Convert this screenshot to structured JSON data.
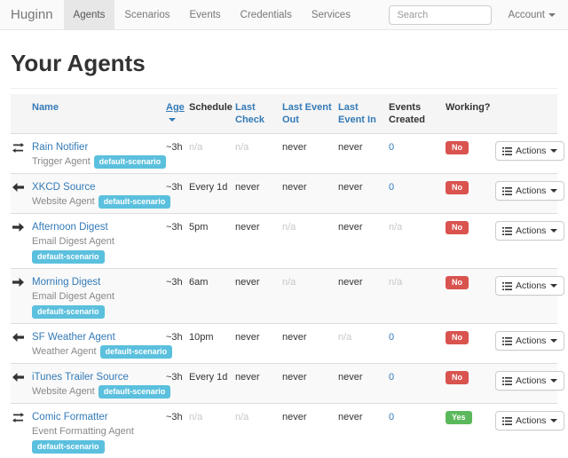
{
  "navbar": {
    "brand": "Huginn",
    "items": [
      {
        "label": "Agents",
        "active": true
      },
      {
        "label": "Scenarios",
        "active": false
      },
      {
        "label": "Events",
        "active": false
      },
      {
        "label": "Credentials",
        "active": false
      },
      {
        "label": "Services",
        "active": false
      }
    ],
    "search_placeholder": "Search",
    "account_label": "Account"
  },
  "page": {
    "title": "Your Agents"
  },
  "table": {
    "headers": [
      {
        "label": "",
        "link": false,
        "sorted": false
      },
      {
        "label": "Name",
        "link": true,
        "sorted": false
      },
      {
        "label": "Age",
        "link": true,
        "sorted": true
      },
      {
        "label": "Schedule",
        "link": false,
        "sorted": false
      },
      {
        "label": "Last Check",
        "link": true,
        "sorted": false
      },
      {
        "label": "Last Event Out",
        "link": true,
        "sorted": false
      },
      {
        "label": "Last Event In",
        "link": true,
        "sorted": false
      },
      {
        "label": "Events Created",
        "link": false,
        "sorted": false
      },
      {
        "label": "Working?",
        "link": false,
        "sorted": false
      },
      {
        "label": "",
        "link": false,
        "sorted": false
      }
    ],
    "actions_label": "Actions",
    "rows": [
      {
        "icon": "exchange",
        "name": "Rain Notifier",
        "type": "Trigger Agent",
        "scenario": "default-scenario",
        "badge_on_new_line": false,
        "age": "~3h",
        "schedule": "n/a",
        "last_check": "n/a",
        "last_event_out": "never",
        "last_event_in": "never",
        "events_created": "0",
        "working": "No"
      },
      {
        "icon": "arrow-left",
        "name": "XKCD Source",
        "type": "Website Agent",
        "scenario": "default-scenario",
        "badge_on_new_line": false,
        "age": "~3h",
        "schedule": "Every 1d",
        "last_check": "never",
        "last_event_out": "never",
        "last_event_in": "never",
        "events_created": "0",
        "working": "No"
      },
      {
        "icon": "arrow-right",
        "name": "Afternoon Digest",
        "type": "Email Digest Agent",
        "scenario": "default-scenario",
        "badge_on_new_line": true,
        "age": "~3h",
        "schedule": "5pm",
        "last_check": "never",
        "last_event_out": "n/a",
        "last_event_in": "never",
        "events_created": "n/a",
        "working": "No"
      },
      {
        "icon": "arrow-right",
        "name": "Morning Digest",
        "type": "Email Digest Agent",
        "scenario": "default-scenario",
        "badge_on_new_line": true,
        "age": "~3h",
        "schedule": "6am",
        "last_check": "never",
        "last_event_out": "n/a",
        "last_event_in": "never",
        "events_created": "n/a",
        "working": "No"
      },
      {
        "icon": "arrow-left",
        "name": "SF Weather Agent",
        "type": "Weather Agent",
        "scenario": "default-scenario",
        "badge_on_new_line": false,
        "age": "~3h",
        "schedule": "10pm",
        "last_check": "never",
        "last_event_out": "never",
        "last_event_in": "n/a",
        "events_created": "0",
        "working": "No"
      },
      {
        "icon": "arrow-left",
        "name": "iTunes Trailer Source",
        "type": "Website Agent",
        "scenario": "default-scenario",
        "badge_on_new_line": false,
        "age": "~3h",
        "schedule": "Every 1d",
        "last_check": "never",
        "last_event_out": "never",
        "last_event_in": "never",
        "events_created": "0",
        "working": "No"
      },
      {
        "icon": "exchange",
        "name": "Comic Formatter",
        "type": "Event Formatting Agent",
        "scenario": "default-scenario",
        "badge_on_new_line": true,
        "age": "~3h",
        "schedule": "n/a",
        "last_check": "n/a",
        "last_event_out": "never",
        "last_event_in": "never",
        "events_created": "0",
        "working": "Yes"
      }
    ]
  },
  "colors": {
    "link": "#337ab7",
    "scenario_badge": "#5bc0de",
    "working_no": "#d9534f",
    "working_yes": "#5cb85c"
  }
}
